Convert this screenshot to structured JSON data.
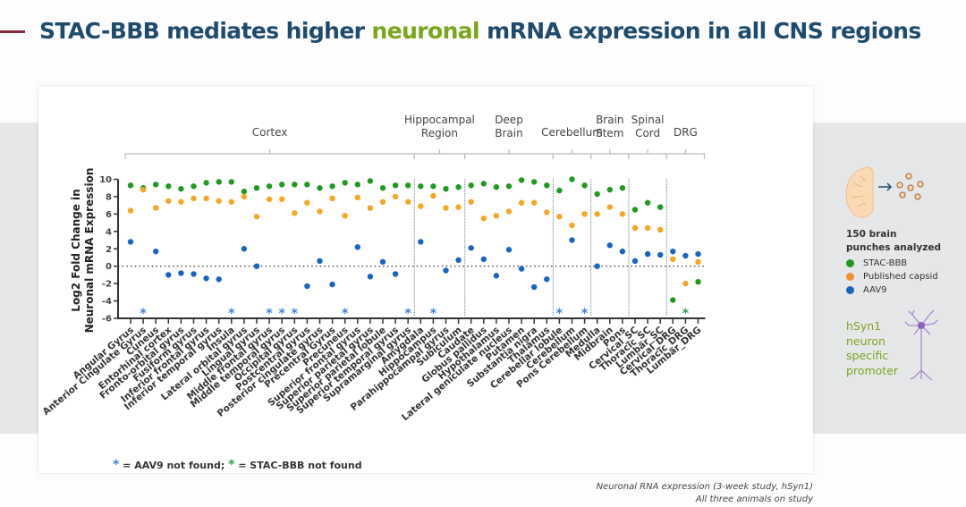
{
  "slide": {
    "title_before": "STAC-BBB mediates higher ",
    "title_highlight": "neuronal",
    "title_after": " mRNA expression in all CNS regions",
    "footnote_key_aav9": " = AAV9 not found; ",
    "footnote_key_stac": " = STAC-BBB not found",
    "footnote_star": "*",
    "source_line1": "Neuronal RNA expression (3-week study, hSyn1)",
    "source_line2": "All three animals on study",
    "legend_heading_line1": "150 brain",
    "legend_heading_line2": "punches analyzed",
    "promoter_lines": [
      "hSyn1",
      "neuron",
      "specific",
      "promoter"
    ],
    "icons": [
      "brain-slice-icon",
      "arrow-right-icon",
      "punch-circles-icon",
      "neuron-icon"
    ]
  },
  "chart_data": {
    "type": "scatter",
    "title": "",
    "ylabel_line1": "Log2 Fold Change in",
    "ylabel_line2": "Neuronal mRNA Expression",
    "xlabel": "",
    "ylim": [
      -6,
      10
    ],
    "yticks": [
      10,
      8,
      6,
      4,
      2,
      0,
      -2,
      -4,
      -6
    ],
    "reference_line": 0,
    "not_found_marker": -5.4,
    "groups": [
      {
        "name": "Cortex",
        "count": 23
      },
      {
        "name": "Hippocampal Region",
        "count": 4
      },
      {
        "name": "Deep Brain",
        "count": 7
      },
      {
        "name": "Cerebellum",
        "count": 3
      },
      {
        "name": "Brain Stem",
        "count": 3
      },
      {
        "name": "Spinal Cord",
        "count": 3
      },
      {
        "name": "DRG",
        "count": 3
      }
    ],
    "categories": [
      "Angular Gyrus",
      "Anterior Cingulate Gyrus",
      "Cuneus",
      "Entorhinal cortex",
      "Fronto-orbital gyrus",
      "Fusiform gyrus",
      "Inferior frontal gyrus",
      "Inferior temporal gyrus",
      "Insula",
      "Lateral orbital gyrus",
      "Lingual gyrus",
      "Middle frontal gyrus",
      "Middle temporal gyrus",
      "Occipital gyrus",
      "Postcentral gyrus",
      "Posterior cingulate gyrus",
      "Precentral Gyrus",
      "Precuneus",
      "Superior frontal gyrus",
      "Superior parietal gyrus",
      "Superior parietal lobule",
      "Superior temporal gyrus",
      "Supramarginal gyrus",
      "Amygdala",
      "Hippocampus",
      "Parahippocampal gyrus",
      "Subiculum",
      "Caudate",
      "Globus pallidus",
      "Hypothalamus",
      "Lateral geniculate nucleus",
      "Putamen",
      "Substantia nigra",
      "Thalamus",
      "Cerebellar lobule",
      "Cerebellum",
      "Pons Cerebellum",
      "Medulla",
      "Midbrain",
      "Pons",
      "Cervical_SC",
      "Thoracic_SC",
      "Lumbar_SC",
      "Cervical_DRG",
      "Thoracic_DRG",
      "Lumbar_DRG"
    ],
    "series": [
      {
        "name": "STAC-BBB",
        "color": "#1e9a1e",
        "values": [
          9.3,
          9.0,
          9.4,
          9.2,
          8.9,
          9.2,
          9.6,
          9.7,
          9.7,
          8.6,
          9.0,
          9.2,
          9.4,
          9.4,
          9.4,
          9.0,
          9.2,
          9.6,
          9.4,
          9.8,
          9.0,
          9.3,
          9.3,
          9.2,
          9.2,
          8.9,
          9.1,
          9.3,
          9.5,
          9.1,
          9.2,
          9.9,
          9.7,
          9.3,
          8.7,
          10.0,
          9.3,
          8.3,
          8.8,
          9.0,
          6.5,
          7.3,
          6.8,
          -3.9,
          null,
          -1.8
        ]
      },
      {
        "name": "Published capsid",
        "color": "#f5a623",
        "values": [
          6.4,
          8.8,
          6.7,
          7.5,
          7.4,
          7.8,
          7.8,
          7.5,
          7.4,
          8.0,
          5.7,
          7.7,
          7.7,
          6.1,
          7.3,
          6.3,
          7.8,
          5.8,
          7.9,
          6.7,
          7.4,
          8.0,
          7.4,
          6.9,
          8.1,
          6.7,
          6.8,
          7.4,
          5.5,
          5.8,
          6.3,
          7.3,
          7.3,
          6.2,
          5.7,
          4.7,
          6.0,
          6.0,
          6.8,
          6.0,
          4.4,
          4.4,
          4.2,
          0.8,
          -2.0,
          0.5
        ]
      },
      {
        "name": "AAV9",
        "color": "#1565c0",
        "values": [
          2.8,
          null,
          1.7,
          -1.0,
          -0.8,
          -0.9,
          -1.4,
          -1.5,
          null,
          2.0,
          0.0,
          null,
          null,
          null,
          -2.3,
          0.6,
          -2.1,
          null,
          2.2,
          -1.2,
          0.5,
          -0.9,
          null,
          2.8,
          null,
          -0.5,
          0.7,
          2.1,
          0.8,
          -1.1,
          1.9,
          -0.3,
          -2.4,
          -1.5,
          null,
          3.0,
          null,
          0.0,
          2.4,
          1.7,
          0.6,
          1.4,
          1.3,
          1.7,
          1.2,
          1.4
        ]
      }
    ],
    "legend": [
      "STAC-BBB",
      "Published capsid",
      "AAV9"
    ],
    "legend_position": "right",
    "grid": false
  }
}
